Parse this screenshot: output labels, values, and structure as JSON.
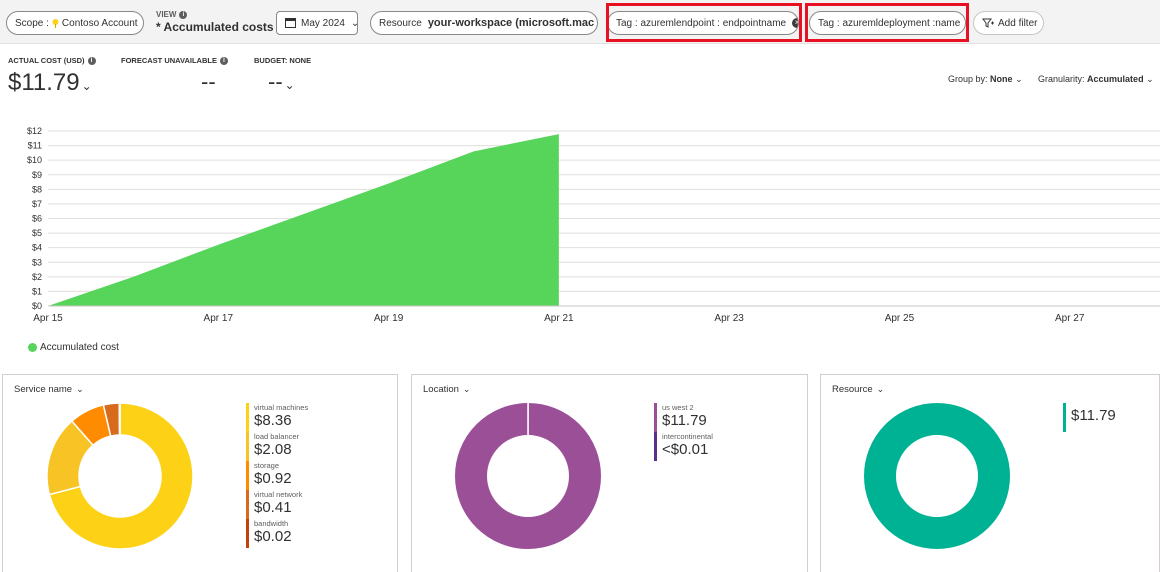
{
  "toolbar": {
    "scope_label": "Scope :",
    "scope_value": "Contoso Account",
    "view_label": "VIEW",
    "view_value": "* Accumulated costs",
    "date_value": "May 2024",
    "resource_key": "Resource",
    "resource_value": "your-workspace (microsoft.mac",
    "tag1_text": "Tag : azuremlendpoint : endpointname",
    "tag2_text": "Tag : azuremldeployment :name",
    "add_filter_label": "Add filter"
  },
  "kpis": {
    "actual_label": "ACTUAL COST (USD)",
    "actual_value": "$11.79",
    "forecast_label": "FORECAST UNAVAILABLE",
    "forecast_value": "--",
    "budget_label": "BUDGET: NONE",
    "budget_value": "--"
  },
  "controls": {
    "group_by_label": "Group by:",
    "group_by_value": "None",
    "granularity_label": "Granularity:",
    "granularity_value": "Accumulated"
  },
  "colors": {
    "area": "#57d55a",
    "redbox": "#e81123",
    "location_primary": "#9b4f96",
    "location_secondary": "#5c2d91",
    "resource": "#00b294"
  },
  "chart_data": {
    "type": "area",
    "x_ticks": [
      "Apr 15",
      "Apr 17",
      "Apr 19",
      "Apr 21",
      "Apr 23",
      "Apr 25",
      "Apr 27"
    ],
    "y_ticks": [
      "$0",
      "$1",
      "$2",
      "$3",
      "$4",
      "$5",
      "$6",
      "$7",
      "$8",
      "$9",
      "$10",
      "$11",
      "$12"
    ],
    "ylim": [
      0,
      12
    ],
    "x_range_days": [
      0,
      14
    ],
    "series": [
      {
        "name": "Accumulated cost",
        "x_days": [
          0,
          1,
          2,
          3,
          4,
          5,
          6
        ],
        "values": [
          0.0,
          2.0,
          4.2,
          6.3,
          8.4,
          10.6,
          11.79
        ]
      }
    ],
    "legend": [
      "Accumulated cost"
    ]
  },
  "cards": {
    "service": {
      "title": "Service name",
      "items": [
        {
          "name": "virtual machines",
          "amount": "$8.36",
          "value": 8.36,
          "color": "#fcd116"
        },
        {
          "name": "load balancer",
          "amount": "$2.08",
          "value": 2.08,
          "color": "#f7c325"
        },
        {
          "name": "storage",
          "amount": "$0.92",
          "value": 0.92,
          "color": "#ff8c00"
        },
        {
          "name": "virtual network",
          "amount": "$0.41",
          "value": 0.41,
          "color": "#d86a1b"
        },
        {
          "name": "bandwidth",
          "amount": "$0.02",
          "value": 0.02,
          "color": "#c2410c"
        }
      ]
    },
    "location": {
      "title": "Location",
      "items": [
        {
          "name": "us west 2",
          "amount": "$11.79",
          "value": 11.79,
          "color": "#9b4f96"
        },
        {
          "name": "intercontinental",
          "amount": "<$0.01",
          "value": 0.005,
          "color": "#5c2d91"
        }
      ]
    },
    "resource": {
      "title": "Resource",
      "items": [
        {
          "name": "",
          "amount": "$11.79",
          "value": 11.79,
          "color": "#00b294"
        }
      ]
    }
  }
}
